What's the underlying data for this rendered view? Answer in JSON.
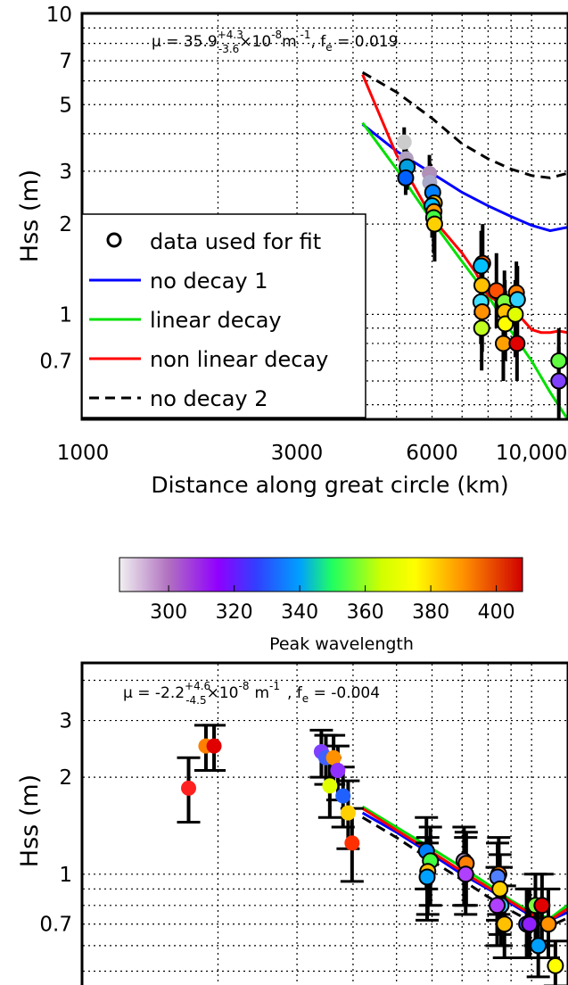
{
  "chart_data": [
    {
      "type": "line",
      "panel": "top",
      "annotation": {
        "mu_prefix": "μ = 35.9",
        "mu_sup": "+4.3",
        "mu_sub": "-3.6",
        "mu_suffix": "×10",
        "mu_exp": "-8",
        "mu_unit": "m",
        "mu_unit_exp": " -1",
        "fe_text": ", f",
        "fe_sub": "e",
        "fe_value": " = 0.019"
      },
      "ylabel": "Hss  (m)",
      "xlabel": "Distance along great circle (km)",
      "xscale": "log",
      "yscale": "log",
      "xlim": [
        1000,
        12000
      ],
      "ylim": [
        0.45,
        10
      ],
      "grid": true,
      "xticks": [
        1000,
        3000,
        6000,
        10000
      ],
      "xtick_labels": [
        "1000",
        "3000",
        "6000",
        "10,000"
      ],
      "yticks": [
        0.7,
        1,
        2,
        3,
        5,
        7,
        10
      ],
      "ytick_labels": [
        "0.7",
        "1",
        "2",
        "3",
        "5",
        "7",
        "10"
      ],
      "legend": {
        "placement": "left",
        "entries": [
          "data used for fit",
          "no decay 1",
          "linear decay",
          "non linear decay",
          "no decay 2"
        ]
      },
      "series": [
        {
          "name": "no decay 1",
          "color": "#0000ff",
          "style": "solid",
          "x": [
            4200,
            5000,
            6000,
            7000,
            8000,
            9000,
            10000,
            11000,
            12000
          ],
          "y": [
            4.3,
            3.5,
            2.95,
            2.55,
            2.3,
            2.12,
            1.98,
            1.9,
            1.95
          ]
        },
        {
          "name": "linear decay",
          "color": "#00e000",
          "style": "solid",
          "x": [
            4200,
            5000,
            6000,
            7000,
            8000,
            9000,
            10000,
            11000,
            12000
          ],
          "y": [
            4.35,
            3.05,
            2.05,
            1.5,
            1.15,
            0.88,
            0.7,
            0.55,
            0.45
          ]
        },
        {
          "name": "non linear decay",
          "color": "#ff0000",
          "style": "solid",
          "x": [
            4200,
            5000,
            6000,
            7000,
            7500,
            8000,
            8500,
            9000,
            9500,
            10000,
            10500,
            11000,
            11500,
            12000
          ],
          "y": [
            6.3,
            3.4,
            2.1,
            1.6,
            1.38,
            1.16,
            1.09,
            1.0,
            0.97,
            0.89,
            0.87,
            0.87,
            0.88,
            0.87
          ]
        },
        {
          "name": "no decay 2",
          "color": "#000000",
          "style": "dashed",
          "x": [
            4200,
            5000,
            6000,
            7000,
            8000,
            9000,
            10000,
            11000,
            12000
          ],
          "y": [
            6.4,
            5.5,
            4.5,
            3.7,
            3.3,
            3.05,
            2.9,
            2.85,
            2.95
          ]
        }
      ],
      "points": [
        {
          "x": 5200,
          "y": 3.75,
          "c": "#cccccc",
          "err": [
            3.3,
            4.2
          ],
          "fit": false
        },
        {
          "x": 5250,
          "y": 3.3,
          "c": "#b0a0c0",
          "err": [
            2.9,
            3.8
          ],
          "fit": false
        },
        {
          "x": 5280,
          "y": 3.1,
          "c": "#00a0e0",
          "err": [
            2.6,
            3.5
          ],
          "fit": true
        },
        {
          "x": 5240,
          "y": 2.85,
          "c": "#0060ff",
          "err": [
            2.5,
            3.2
          ],
          "fit": true
        },
        {
          "x": 5920,
          "y": 2.95,
          "c": "#b090b8",
          "err": [
            2.5,
            3.4
          ],
          "fit": false
        },
        {
          "x": 5930,
          "y": 2.75,
          "c": "#a8a8c8",
          "err": [
            2.3,
            3.2
          ],
          "fit": false
        },
        {
          "x": 6020,
          "y": 2.55,
          "c": "#0080ff",
          "err": [
            2.0,
            3.0
          ],
          "fit": true
        },
        {
          "x": 6070,
          "y": 2.35,
          "c": "#ffc000",
          "err": [
            1.8,
            2.9
          ],
          "fit": true
        },
        {
          "x": 6000,
          "y": 2.3,
          "c": "#00c0ff",
          "err": [
            1.8,
            2.8
          ],
          "fit": true
        },
        {
          "x": 6060,
          "y": 2.2,
          "c": "#ffa000",
          "err": [
            1.7,
            2.7
          ],
          "fit": true
        },
        {
          "x": 6050,
          "y": 2.1,
          "c": "#40ff40",
          "err": [
            1.6,
            2.6
          ],
          "fit": true
        },
        {
          "x": 6080,
          "y": 2.0,
          "c": "#ffd000",
          "err": [
            1.5,
            2.5
          ],
          "fit": true
        },
        {
          "x": 7780,
          "y": 1.48,
          "c": "#ff6000",
          "err": [
            1.1,
            2.0
          ],
          "fit": true
        },
        {
          "x": 7720,
          "y": 1.45,
          "c": "#00c0ff",
          "err": [
            1.1,
            1.9
          ],
          "fit": true
        },
        {
          "x": 7750,
          "y": 1.25,
          "c": "#ffc000",
          "err": [
            0.9,
            1.6
          ],
          "fit": true
        },
        {
          "x": 7710,
          "y": 1.1,
          "c": "#40e0ff",
          "err": [
            0.8,
            1.4
          ],
          "fit": true
        },
        {
          "x": 7760,
          "y": 1.02,
          "c": "#ff9000",
          "err": [
            0.75,
            1.3
          ],
          "fit": true
        },
        {
          "x": 7740,
          "y": 0.9,
          "c": "#c0ff20",
          "err": [
            0.65,
            1.2
          ],
          "fit": true
        },
        {
          "x": 8350,
          "y": 1.2,
          "c": "#ff5000",
          "err": [
            0.9,
            1.6
          ],
          "fit": true
        },
        {
          "x": 8700,
          "y": 1.1,
          "c": "#80ff40",
          "err": [
            0.8,
            1.4
          ],
          "fit": true
        },
        {
          "x": 8720,
          "y": 1.02,
          "c": "#ffc000",
          "err": [
            0.75,
            1.3
          ],
          "fit": true
        },
        {
          "x": 8740,
          "y": 0.93,
          "c": "#ffff00",
          "err": [
            0.7,
            1.2
          ],
          "fit": true
        },
        {
          "x": 8650,
          "y": 0.8,
          "c": "#ffa000",
          "err": [
            0.6,
            1.05
          ],
          "fit": true
        },
        {
          "x": 9250,
          "y": 1.18,
          "c": "#ff8000",
          "err": [
            0.85,
            1.5
          ],
          "fit": true
        },
        {
          "x": 9300,
          "y": 1.12,
          "c": "#30d0ff",
          "err": [
            0.85,
            1.45
          ],
          "fit": true
        },
        {
          "x": 9200,
          "y": 1.0,
          "c": "#e0ff00",
          "err": [
            0.72,
            1.3
          ],
          "fit": true
        },
        {
          "x": 9280,
          "y": 0.8,
          "c": "#e00000",
          "err": [
            0.6,
            1.05
          ],
          "fit": true
        },
        {
          "x": 11500,
          "y": 0.7,
          "c": "#60ff40",
          "err": [
            0.5,
            0.9
          ],
          "fit": true
        },
        {
          "x": 11500,
          "y": 0.6,
          "c": "#8040ff",
          "err": [
            0.45,
            0.78
          ],
          "fit": true
        }
      ]
    },
    {
      "type": "colorbar",
      "title": "Peak wavelength",
      "range": [
        285,
        408
      ],
      "ticks": [
        300,
        320,
        340,
        360,
        380,
        400
      ],
      "stops": [
        {
          "v": 285,
          "c": "#f0f0f0"
        },
        {
          "v": 300,
          "c": "#b070c0"
        },
        {
          "v": 315,
          "c": "#9000ff"
        },
        {
          "v": 327,
          "c": "#3040ff"
        },
        {
          "v": 340,
          "c": "#00a0ff"
        },
        {
          "v": 350,
          "c": "#20ff60"
        },
        {
          "v": 365,
          "c": "#d0ff00"
        },
        {
          "v": 375,
          "c": "#ffff00"
        },
        {
          "v": 390,
          "c": "#ff9000"
        },
        {
          "v": 408,
          "c": "#d00000"
        }
      ]
    },
    {
      "type": "line",
      "panel": "bottom",
      "annotation": {
        "mu_prefix": "μ = -2.2",
        "mu_sup": "+4.6",
        "mu_sub": "-4.5",
        "mu_suffix": "×10",
        "mu_exp": "-8",
        "mu_unit": "m",
        "mu_unit_exp": "-1",
        "fe_text": ", f",
        "fe_sub": "e",
        "fe_value": " = -0.004"
      },
      "ylabel": "Hss  (m)",
      "xscale": "log",
      "yscale": "log",
      "xlim": [
        1000,
        12000
      ],
      "ylim": [
        0.45,
        4.5
      ],
      "grid": true,
      "yticks": [
        0.7,
        1,
        2,
        3
      ],
      "ytick_labels": [
        "0.7",
        "1",
        "2",
        "3"
      ],
      "series": [
        {
          "name": "",
          "color": "#00e000",
          "style": "solid",
          "x": [
            4200,
            5000,
            6000,
            7000,
            8000,
            9000,
            10000,
            11000,
            12000
          ],
          "y": [
            1.62,
            1.4,
            1.2,
            1.05,
            0.93,
            0.83,
            0.76,
            0.73,
            0.8
          ]
        },
        {
          "name": "",
          "color": "#0000ff",
          "style": "solid",
          "x": [
            4200,
            5000,
            6000,
            7000,
            8000,
            9000,
            10000,
            11000,
            12000
          ],
          "y": [
            1.55,
            1.35,
            1.15,
            1.0,
            0.9,
            0.81,
            0.74,
            0.72,
            0.76
          ]
        },
        {
          "name": "",
          "color": "#ff0000",
          "style": "solid",
          "x": [
            4200,
            5000,
            6000,
            7000,
            8000,
            9000,
            10000,
            11000,
            12000
          ],
          "y": [
            1.6,
            1.37,
            1.17,
            1.02,
            0.91,
            0.82,
            0.75,
            0.72,
            0.78
          ]
        },
        {
          "name": "",
          "color": "#000000",
          "style": "dashed",
          "x": [
            4200,
            5000,
            6000,
            7000,
            8000,
            9000,
            10000,
            11000,
            12000
          ],
          "y": [
            1.5,
            1.3,
            1.1,
            0.96,
            0.85,
            0.77,
            0.71,
            0.69,
            0.73
          ]
        }
      ],
      "points": [
        {
          "x": 1720,
          "y": 1.85,
          "c": "#ff2020",
          "err": [
            1.45,
            2.3
          ],
          "fit": false
        },
        {
          "x": 1880,
          "y": 2.5,
          "c": "#ff8000",
          "err": [
            2.1,
            2.9
          ],
          "fit": false
        },
        {
          "x": 1960,
          "y": 2.5,
          "c": "#e00000",
          "err": [
            2.1,
            2.9
          ],
          "fit": false
        },
        {
          "x": 3400,
          "y": 2.4,
          "c": "#8040ff",
          "err": [
            2.0,
            2.8
          ],
          "fit": false
        },
        {
          "x": 3480,
          "y": 2.3,
          "c": "#4060ff",
          "err": [
            1.9,
            2.7
          ],
          "fit": false
        },
        {
          "x": 3620,
          "y": 2.3,
          "c": "#ff9000",
          "err": [
            1.9,
            2.7
          ],
          "fit": false
        },
        {
          "x": 3700,
          "y": 2.1,
          "c": "#9030ff",
          "err": [
            1.7,
            2.5
          ],
          "fit": false
        },
        {
          "x": 3550,
          "y": 1.88,
          "c": "#e0ff00",
          "err": [
            1.5,
            2.3
          ],
          "fit": false
        },
        {
          "x": 3800,
          "y": 1.75,
          "c": "#2060ff",
          "err": [
            1.4,
            2.15
          ],
          "fit": false
        },
        {
          "x": 3900,
          "y": 1.55,
          "c": "#ffd000",
          "err": [
            1.2,
            1.95
          ],
          "fit": false
        },
        {
          "x": 3980,
          "y": 1.25,
          "c": "#ff3000",
          "err": [
            0.95,
            1.6
          ],
          "fit": false
        },
        {
          "x": 5830,
          "y": 1.18,
          "c": "#0080ff",
          "err": [
            0.9,
            1.5
          ],
          "fit": true
        },
        {
          "x": 5950,
          "y": 1.1,
          "c": "#40ff40",
          "err": [
            0.8,
            1.4
          ],
          "fit": true
        },
        {
          "x": 5870,
          "y": 1.02,
          "c": "#ffc000",
          "err": [
            0.75,
            1.3
          ],
          "fit": true
        },
        {
          "x": 5850,
          "y": 0.98,
          "c": "#00a0ff",
          "err": [
            0.72,
            1.25
          ],
          "fit": true
        },
        {
          "x": 7070,
          "y": 1.1,
          "c": "#b090c0",
          "err": [
            0.8,
            1.4
          ],
          "fit": true
        },
        {
          "x": 7150,
          "y": 1.08,
          "c": "#ff8000",
          "err": [
            0.8,
            1.35
          ],
          "fit": true
        },
        {
          "x": 7130,
          "y": 1.0,
          "c": "#b040ff",
          "err": [
            0.75,
            1.3
          ],
          "fit": true
        },
        {
          "x": 8450,
          "y": 1.0,
          "c": "#ff8000",
          "err": [
            0.75,
            1.3
          ],
          "fit": true
        },
        {
          "x": 8400,
          "y": 0.98,
          "c": "#5080ff",
          "err": [
            0.72,
            1.25
          ],
          "fit": true
        },
        {
          "x": 8500,
          "y": 0.9,
          "c": "#ffd000",
          "err": [
            0.65,
            1.15
          ],
          "fit": true
        },
        {
          "x": 8550,
          "y": 0.8,
          "c": "#40c0ff",
          "err": [
            0.6,
            1.05
          ],
          "fit": true
        },
        {
          "x": 8380,
          "y": 0.8,
          "c": "#b040ff",
          "err": [
            0.6,
            1.05
          ],
          "fit": true
        },
        {
          "x": 8700,
          "y": 0.7,
          "c": "#ffc000",
          "err": [
            0.55,
            0.92
          ],
          "fit": true
        },
        {
          "x": 9750,
          "y": 0.7,
          "c": "#4040ff",
          "err": [
            0.55,
            0.9
          ],
          "fit": true
        },
        {
          "x": 9900,
          "y": 0.7,
          "c": "#9020ff",
          "err": [
            0.55,
            0.9
          ],
          "fit": true
        },
        {
          "x": 10200,
          "y": 0.8,
          "c": "#80ff40",
          "err": [
            0.6,
            1.0
          ],
          "fit": true
        },
        {
          "x": 10550,
          "y": 0.8,
          "c": "#e00000",
          "err": [
            0.6,
            1.0
          ],
          "fit": true
        },
        {
          "x": 10900,
          "y": 0.7,
          "c": "#ff9000",
          "err": [
            0.55,
            0.9
          ],
          "fit": true
        },
        {
          "x": 10350,
          "y": 0.6,
          "c": "#00a0ff",
          "err": [
            0.48,
            0.78
          ],
          "fit": true
        },
        {
          "x": 11300,
          "y": 0.52,
          "c": "#ffff00",
          "err": [
            0.45,
            0.62
          ],
          "fit": true
        }
      ]
    }
  ]
}
